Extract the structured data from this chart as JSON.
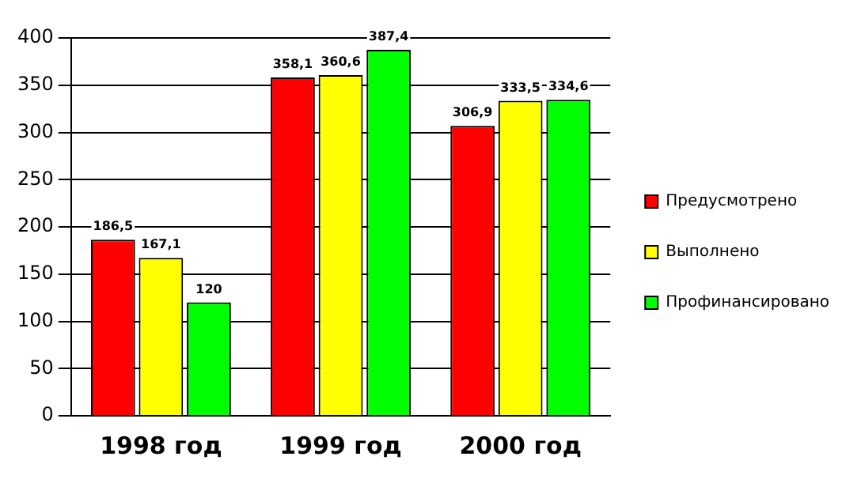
{
  "chart_data": {
    "type": "bar",
    "categories": [
      "1998 год",
      "1999 год",
      "2000 год"
    ],
    "series": [
      {
        "name": "Предусмотрено",
        "color": "#ff0000",
        "values": [
          186.5,
          358.1,
          306.9
        ],
        "value_labels": [
          "186,5",
          "358,1",
          "306,9"
        ]
      },
      {
        "name": "Выполнено",
        "color": "#ffff00",
        "values": [
          167.1,
          360.6,
          333.5
        ],
        "value_labels": [
          "167,1",
          "360,6",
          "333,5"
        ]
      },
      {
        "name": "Профинансировано",
        "color": "#00ff00",
        "values": [
          120,
          387.4,
          334.6
        ],
        "value_labels": [
          "120",
          "387,4",
          "334,6"
        ]
      }
    ],
    "ylim": [
      0,
      400
    ],
    "yticks": [
      0,
      50,
      100,
      150,
      200,
      250,
      300,
      350,
      400
    ],
    "grid": "y",
    "legend": "right"
  }
}
